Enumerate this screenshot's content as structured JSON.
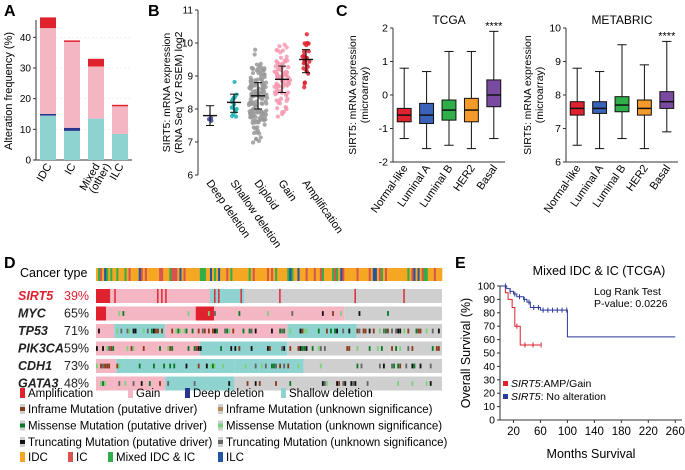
{
  "panels": {
    "A": {
      "label": "A"
    },
    "B": {
      "label": "B"
    },
    "C": {
      "label": "C"
    },
    "D": {
      "label": "D"
    },
    "E": {
      "label": "E"
    }
  },
  "chart_data": [
    {
      "id": "A",
      "type": "bar",
      "ylabel": "Alteration frequency (%)",
      "ylim": [
        0,
        45
      ],
      "yticks": [
        "0",
        "10",
        "20",
        "30",
        "40"
      ],
      "categories": [
        "IDC",
        "IC",
        "Mixed\n(other)",
        "ILC"
      ],
      "category_lines": [
        [
          "IDC"
        ],
        [
          "IC"
        ],
        [
          "Mixed",
          "(other)"
        ],
        [
          "ILC"
        ]
      ],
      "series": [
        {
          "name": "Shallow deletion",
          "color": "#8fd3d1",
          "values": [
            14.5,
            9.5,
            13.5,
            8.5
          ]
        },
        {
          "name": "Deep deletion",
          "color": "#2a3590",
          "values": [
            0.5,
            1,
            0,
            0
          ]
        },
        {
          "name": "Gain",
          "color": "#f4b6c2",
          "values": [
            28,
            28,
            17,
            9
          ]
        },
        {
          "name": "Amplification",
          "color": "#e0212e",
          "values": [
            3.5,
            0.5,
            2.5,
            0.5
          ]
        }
      ]
    },
    {
      "id": "B",
      "type": "scatter",
      "ylabel_lines": [
        "SIRT5: mRNA expression",
        "(RNA Seq V2 RSEM) log2"
      ],
      "ylim": [
        6,
        11
      ],
      "yticks": [
        "6",
        "7",
        "8",
        "9",
        "10",
        "11"
      ],
      "categories": [
        "Deep deletion",
        "Shallow deletion",
        "Diploid",
        "Gain",
        "Amplification"
      ],
      "colors": [
        "#3a4aa0",
        "#1bb3b3",
        "#9a9a9a",
        "#f59ab0",
        "#e0212e"
      ],
      "medians": [
        7.8,
        8.2,
        8.4,
        8.9,
        9.5
      ],
      "q1": [
        7.5,
        7.9,
        8.0,
        8.5,
        9.1
      ],
      "q3": [
        8.1,
        8.45,
        8.8,
        9.3,
        9.8
      ],
      "spread_low": [
        7.2,
        7.2,
        6.6,
        7.0,
        8.3
      ],
      "spread_high": [
        8.2,
        9.0,
        10.1,
        10.0,
        10.3
      ],
      "counts": [
        3,
        18,
        150,
        90,
        26
      ]
    },
    {
      "id": "C1",
      "type": "box",
      "title": "TCGA",
      "ylabel_lines": [
        "SIRT5: mRNA expression",
        "(microarray)"
      ],
      "ylim": [
        -2,
        2
      ],
      "yticks": [
        "-2",
        "-1",
        "0",
        "1",
        "2"
      ],
      "categories": [
        "Normal-like",
        "Luminal A",
        "Luminal B",
        "HER2",
        "Basal"
      ],
      "colors": [
        "#e0212e",
        "#3a62b8",
        "#2fae4a",
        "#f39a2a",
        "#7a4aa0"
      ],
      "min": [
        -1.3,
        -1.6,
        -1.5,
        -1.6,
        -1.3
      ],
      "q1": [
        -0.8,
        -0.85,
        -0.75,
        -0.8,
        -0.35
      ],
      "median": [
        -0.6,
        -0.6,
        -0.45,
        -0.45,
        0.0
      ],
      "q3": [
        -0.4,
        -0.25,
        -0.15,
        -0.1,
        0.45
      ],
      "max": [
        0.8,
        0.7,
        1.3,
        1.3,
        1.9
      ],
      "annotation": "****"
    },
    {
      "id": "C2",
      "type": "box",
      "title": "METABRIC",
      "ylabel_lines": [
        "SIRT5: mRNA expression",
        "(microarray)"
      ],
      "ylim": [
        6,
        10
      ],
      "yticks": [
        "6",
        "7",
        "8",
        "9",
        "10"
      ],
      "categories": [
        "Normal-like",
        "Luminal A",
        "Luminal B",
        "HER2",
        "Basal"
      ],
      "colors": [
        "#e0212e",
        "#3a62b8",
        "#2fae4a",
        "#f39a2a",
        "#7a4aa0"
      ],
      "min": [
        6.5,
        6.4,
        6.7,
        6.4,
        6.9
      ],
      "q1": [
        7.4,
        7.45,
        7.5,
        7.4,
        7.6
      ],
      "median": [
        7.6,
        7.6,
        7.7,
        7.6,
        7.8
      ],
      "q3": [
        7.8,
        7.8,
        7.95,
        7.85,
        8.1
      ],
      "max": [
        8.8,
        8.7,
        9.5,
        8.9,
        9.6
      ],
      "annotation": "****"
    },
    {
      "id": "E",
      "type": "line",
      "title": "Mixed IDC & IC (TCGA)",
      "xlabel": "Months Survival",
      "ylabel": "Overall Survival (%)",
      "xlim": [
        0,
        270
      ],
      "ylim": [
        0,
        100
      ],
      "xticks": [
        "20",
        "60",
        "100",
        "140",
        "180",
        "220",
        "260"
      ],
      "xtick_values": [
        20,
        60,
        100,
        140,
        180,
        220,
        260
      ],
      "yticks": [
        "0",
        "10",
        "20",
        "30",
        "40",
        "50",
        "60",
        "70",
        "80",
        "90",
        "100"
      ],
      "annotation_lines": [
        "Log Rank Test",
        "P-value: 0.0226"
      ],
      "series": [
        {
          "name": "SIRT5:AMP/Gain",
          "color": "#e0212e",
          "x": [
            0,
            8,
            12,
            18,
            22,
            30,
            60
          ],
          "y": [
            100,
            95,
            90,
            84,
            70,
            56,
            56
          ]
        },
        {
          "name": "SIRT5: No alteration",
          "color": "#2a3a9a",
          "x": [
            0,
            10,
            15,
            20,
            25,
            35,
            40,
            45,
            60,
            95,
            100,
            260
          ],
          "y": [
            100,
            98,
            96,
            94,
            92,
            90,
            88,
            84,
            82,
            82,
            62,
            62
          ]
        }
      ]
    }
  ],
  "oncoprint": {
    "cancer_type_label": "Cancer type",
    "genes": [
      {
        "name": "SIRT5",
        "pct": "39%",
        "highlight": true
      },
      {
        "name": "MYC",
        "pct": "65%",
        "highlight": false
      },
      {
        "name": "TP53",
        "pct": "71%",
        "highlight": false
      },
      {
        "name": "PIK3CA",
        "pct": "59%",
        "highlight": false
      },
      {
        "name": "CDH1",
        "pct": "73%",
        "highlight": false
      },
      {
        "name": "GATA3",
        "pct": "48%",
        "highlight": false
      }
    ],
    "legend_cna": [
      {
        "label": "Amplification",
        "color": "#e0212e"
      },
      {
        "label": "Gain",
        "color": "#f4b6c2"
      },
      {
        "label": "Deep deletion",
        "color": "#2a3590"
      },
      {
        "label": "Shallow deletion",
        "color": "#8fd3d1"
      }
    ],
    "legend_mut": [
      [
        "Inframe Mutation (putative driver)",
        "Inframe Mutation (unknown significance)"
      ],
      [
        "Missense Mutation (putative driver)",
        "Missense Mutation (unknown significance)"
      ],
      [
        "Truncating Mutation (putative driver)",
        "Truncating Mutation (unknown significance)"
      ]
    ],
    "legend_mut_colors": [
      [
        "#8b3a1a",
        "#b88a5a"
      ],
      [
        "#0a7a2a",
        "#7ad37a"
      ],
      [
        "#111111",
        "#666666"
      ]
    ],
    "legend_type": [
      {
        "label": "IDC",
        "color": "#f5a623"
      },
      {
        "label": "IC",
        "color": "#d9534f"
      },
      {
        "label": "Mixed IDC & IC",
        "color": "#2fae4a"
      },
      {
        "label": "ILC",
        "color": "#2255a4"
      }
    ]
  }
}
